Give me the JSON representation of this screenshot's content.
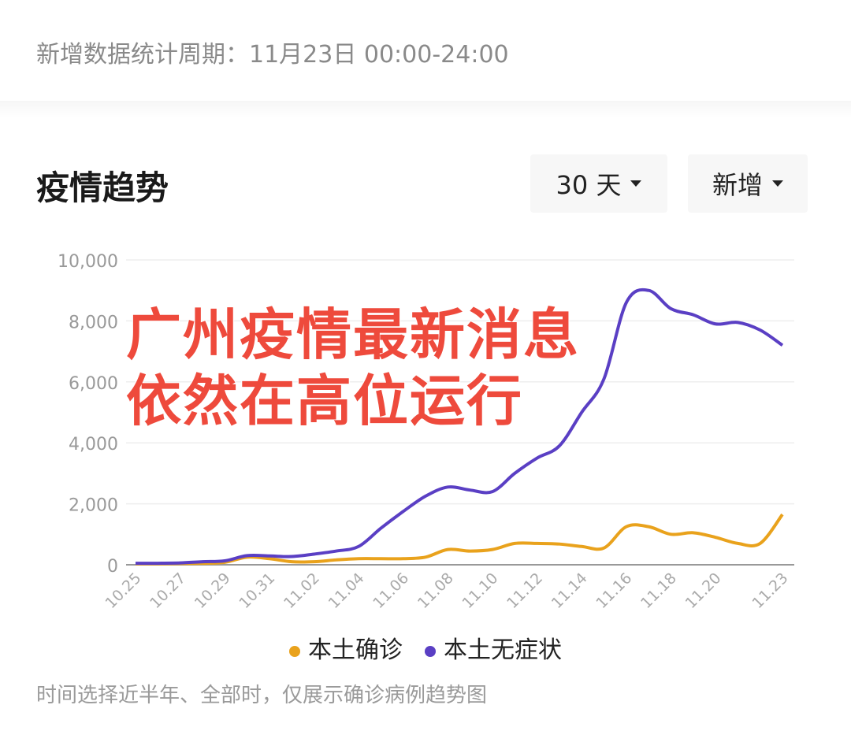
{
  "header": {
    "period_text": "新增数据统计周期：11月23日 00:00-24:00"
  },
  "section": {
    "title": "疫情趋势",
    "range_select": "30 天",
    "type_select": "新增"
  },
  "overlay_text": [
    "广州疫情最新消息",
    "依然在高位运行"
  ],
  "footer_note": "时间选择近半年、全部时，仅展示确诊病例趋势图",
  "colors": {
    "confirmed": "#e9a21c",
    "asymptomatic": "#5a3fc4",
    "overlay": "#ee4a3c"
  },
  "chart_data": {
    "type": "line",
    "title": "",
    "xlabel": "",
    "ylabel": "",
    "ylim": [
      0,
      10000
    ],
    "yticks": [
      "0",
      "2,000",
      "4,000",
      "6,000",
      "8,000",
      "10,000"
    ],
    "grid": true,
    "legend_position": "bottom",
    "categories": [
      "10.25",
      "10.26",
      "10.27",
      "10.28",
      "10.29",
      "10.30",
      "10.31",
      "11.01",
      "11.02",
      "11.03",
      "11.04",
      "11.05",
      "11.06",
      "11.07",
      "11.08",
      "11.09",
      "11.10",
      "11.11",
      "11.12",
      "11.13",
      "11.14",
      "11.15",
      "11.16",
      "11.17",
      "11.18",
      "11.19",
      "11.20",
      "11.21",
      "11.22",
      "11.23"
    ],
    "xtick_labels": [
      "10.25",
      "10.27",
      "10.29",
      "10.31",
      "11.02",
      "11.04",
      "11.06",
      "11.08",
      "11.10",
      "11.12",
      "11.14",
      "11.16",
      "11.18",
      "11.20",
      "11.23"
    ],
    "series": [
      {
        "name": "本土确诊",
        "values": [
          30,
          30,
          40,
          50,
          80,
          250,
          200,
          100,
          100,
          160,
          200,
          200,
          200,
          250,
          500,
          450,
          500,
          700,
          700,
          680,
          600,
          550,
          1250,
          1250,
          1000,
          1050,
          900,
          700,
          700,
          1650
        ]
      },
      {
        "name": "本土无症状",
        "values": [
          50,
          50,
          60,
          100,
          130,
          300,
          290,
          270,
          350,
          450,
          600,
          1200,
          1750,
          2250,
          2550,
          2450,
          2400,
          3000,
          3500,
          3900,
          5000,
          6100,
          8600,
          9000,
          8400,
          8200,
          7900,
          7950,
          7700,
          7200
        ]
      }
    ]
  }
}
